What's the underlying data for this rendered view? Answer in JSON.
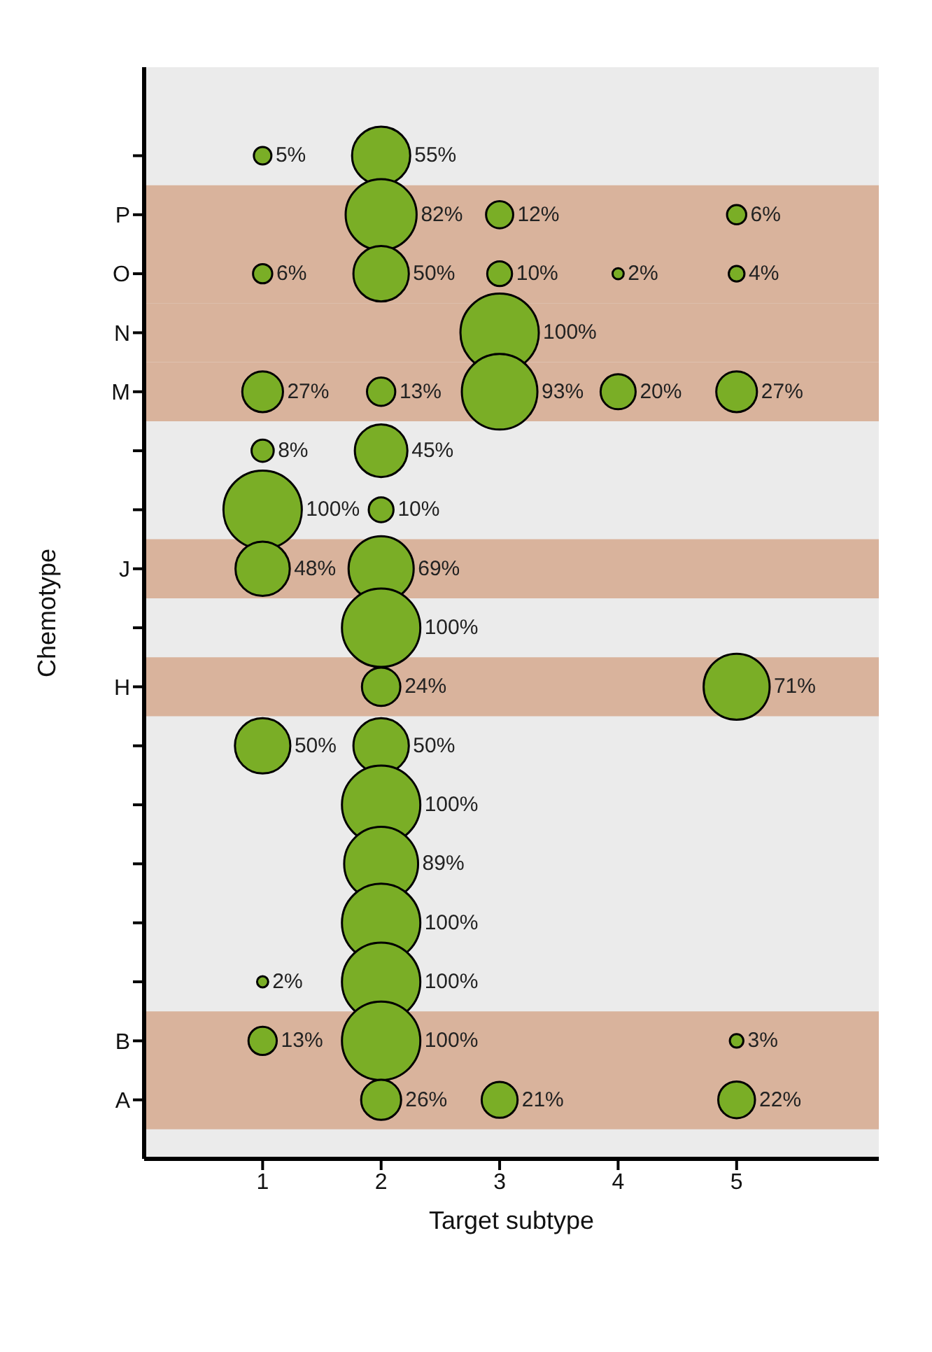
{
  "chart_data": {
    "type": "bubble",
    "orientation": "horizontal",
    "xlabel": "Target subtype",
    "ylabel": "Chemotype",
    "categories": [
      null,
      "P",
      "O",
      "N",
      "M",
      null,
      null,
      "J",
      null,
      "H",
      null,
      null,
      null,
      null,
      null,
      "B",
      "A"
    ],
    "xlim": [
      0,
      6.2
    ],
    "xticks": [
      1,
      2,
      3,
      4,
      5
    ],
    "grid": false,
    "legend": false,
    "bands": [
      {
        "axis": "y",
        "from": "P",
        "to": "O",
        "color": "#d9b39c"
      },
      {
        "axis": "y",
        "from": "N",
        "to": "N",
        "color": "#d9b39c"
      },
      {
        "axis": "y",
        "from": "M",
        "to": "M",
        "color": "#d9b39c"
      },
      {
        "axis": "y",
        "from": "J",
        "to": "J",
        "color": "#d9b39c"
      },
      {
        "axis": "y",
        "from": "H",
        "to": "H",
        "color": "#d9b39c"
      },
      {
        "axis": "y",
        "from": "B",
        "to": "A",
        "color": "#d9b39c"
      }
    ],
    "series": [
      {
        "color": "#7aae26",
        "values": [
          1,
          null,
          1,
          null,
          1,
          1,
          1,
          1,
          null,
          null,
          1,
          null,
          null,
          null,
          1,
          1,
          null
        ],
        "sizes": [
          5,
          null,
          6,
          null,
          27,
          8,
          100,
          48,
          null,
          null,
          50,
          null,
          null,
          null,
          2,
          13,
          null
        ],
        "value_labels": [
          "5%",
          null,
          "6%",
          null,
          "27%",
          "8%",
          "100%",
          "48%",
          null,
          null,
          "50%",
          null,
          null,
          null,
          "2%",
          "13%",
          null
        ]
      },
      {
        "color": "#7aae26",
        "values": [
          2,
          2,
          2,
          null,
          2,
          2,
          2,
          2,
          2,
          2,
          2,
          2,
          2,
          2,
          2,
          2,
          2
        ],
        "sizes": [
          55,
          82,
          50,
          null,
          13,
          45,
          10,
          69,
          100,
          24,
          50,
          100,
          89,
          100,
          100,
          100,
          26
        ],
        "value_labels": [
          "55%",
          "82%",
          "50%",
          null,
          "13%",
          "45%",
          "10%",
          "69%",
          "100%",
          "24%",
          "50%",
          "100%",
          "89%",
          "100%",
          "100%",
          "100%",
          "26%"
        ]
      },
      {
        "color": "#7aae26",
        "values": [
          null,
          3,
          3,
          3,
          3,
          null,
          null,
          null,
          null,
          null,
          null,
          null,
          null,
          null,
          null,
          null,
          3
        ],
        "sizes": [
          null,
          12,
          10,
          100,
          93,
          null,
          null,
          null,
          null,
          null,
          null,
          null,
          null,
          null,
          null,
          null,
          21
        ],
        "value_labels": [
          null,
          "12%",
          "10%",
          "100%",
          "93%",
          null,
          null,
          null,
          null,
          null,
          null,
          null,
          null,
          null,
          null,
          null,
          "21%"
        ]
      },
      {
        "color": "#7aae26",
        "values": [
          null,
          null,
          4,
          null,
          4,
          null,
          null,
          null,
          null,
          null,
          null,
          null,
          null,
          null,
          null,
          null,
          null
        ],
        "sizes": [
          null,
          null,
          2,
          null,
          20,
          null,
          null,
          null,
          null,
          null,
          null,
          null,
          null,
          null,
          null,
          null,
          null
        ],
        "value_labels": [
          null,
          null,
          "2%",
          null,
          "20%",
          null,
          null,
          null,
          null,
          null,
          null,
          null,
          null,
          null,
          null,
          null,
          null
        ]
      },
      {
        "color": "#7aae26",
        "values": [
          null,
          5,
          5,
          null,
          5,
          null,
          null,
          null,
          null,
          5,
          null,
          null,
          null,
          null,
          null,
          5,
          5
        ],
        "sizes": [
          null,
          6,
          4,
          null,
          27,
          null,
          null,
          null,
          null,
          71,
          null,
          null,
          null,
          null,
          null,
          3,
          22
        ],
        "value_labels": [
          null,
          "6%",
          "4%",
          null,
          "27%",
          null,
          null,
          null,
          null,
          "71%",
          null,
          null,
          null,
          null,
          null,
          "3%",
          "22%"
        ]
      }
    ]
  }
}
